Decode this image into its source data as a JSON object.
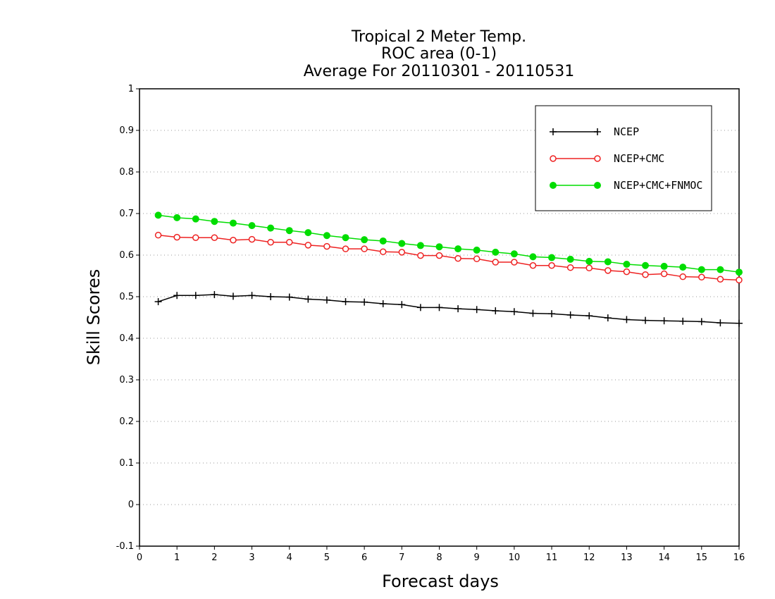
{
  "chart_data": {
    "type": "line",
    "title": [
      "Tropical 2 Meter Temp.",
      "ROC area (0-1)",
      "Average For 20110301 - 20110531"
    ],
    "xlabel": "Forecast days",
    "ylabel": "Skill Scores",
    "xlim": [
      0,
      16
    ],
    "ylim": [
      -0.1,
      1
    ],
    "x_ticks": [
      0,
      1,
      2,
      3,
      4,
      5,
      6,
      7,
      8,
      9,
      10,
      11,
      12,
      13,
      14,
      15,
      16
    ],
    "x_tick_labels": [
      "0",
      "1",
      "2",
      "3",
      "4",
      "5",
      "6",
      "7",
      "8",
      "9",
      "10",
      "11",
      "12",
      "13",
      "14",
      "15",
      "16"
    ],
    "y_ticks": [
      -0.1,
      0,
      0.1,
      0.2,
      0.3,
      0.4,
      0.5,
      0.6,
      0.7,
      0.8,
      0.9,
      1
    ],
    "y_tick_labels": [
      "-0.1",
      "0",
      "0.1",
      "0.2",
      "0.3",
      "0.4",
      "0.5",
      "0.6",
      "0.7",
      "0.8",
      "0.9",
      "1"
    ],
    "grid": "horizontal dotted",
    "legend_position": "top-right",
    "x": [
      0.5,
      1.0,
      1.5,
      2.0,
      2.5,
      3.0,
      3.5,
      4.0,
      4.5,
      5.0,
      5.5,
      6.0,
      6.5,
      7.0,
      7.5,
      8.0,
      8.5,
      9.0,
      9.5,
      10.0,
      10.5,
      11.0,
      11.5,
      12.0,
      12.5,
      13.0,
      13.5,
      14.0,
      14.5,
      15.0,
      15.5,
      16.0
    ],
    "series": [
      {
        "name": "NCEP",
        "color": "#000000",
        "marker": "plus",
        "values": [
          0.488,
          0.503,
          0.503,
          0.505,
          0.501,
          0.503,
          0.5,
          0.499,
          0.494,
          0.492,
          0.488,
          0.487,
          0.483,
          0.481,
          0.474,
          0.474,
          0.471,
          0.469,
          0.466,
          0.464,
          0.46,
          0.459,
          0.456,
          0.454,
          0.449,
          0.445,
          0.443,
          0.442,
          0.441,
          0.44,
          0.437,
          0.436
        ]
      },
      {
        "name": "NCEP+CMC",
        "color": "#ee2222",
        "marker": "open-circle",
        "values": [
          0.648,
          0.643,
          0.642,
          0.642,
          0.636,
          0.638,
          0.631,
          0.631,
          0.624,
          0.621,
          0.615,
          0.615,
          0.608,
          0.607,
          0.599,
          0.599,
          0.592,
          0.591,
          0.583,
          0.583,
          0.575,
          0.575,
          0.57,
          0.569,
          0.563,
          0.56,
          0.553,
          0.555,
          0.548,
          0.547,
          0.542,
          0.54
        ]
      },
      {
        "name": "NCEP+CMC+FNMOC",
        "color": "#00dd00",
        "marker": "filled-circle",
        "values": [
          0.696,
          0.69,
          0.687,
          0.681,
          0.677,
          0.671,
          0.665,
          0.659,
          0.654,
          0.647,
          0.642,
          0.637,
          0.634,
          0.628,
          0.623,
          0.62,
          0.615,
          0.612,
          0.607,
          0.603,
          0.596,
          0.594,
          0.59,
          0.585,
          0.584,
          0.578,
          0.575,
          0.573,
          0.571,
          0.565,
          0.565,
          0.559
        ]
      }
    ]
  }
}
